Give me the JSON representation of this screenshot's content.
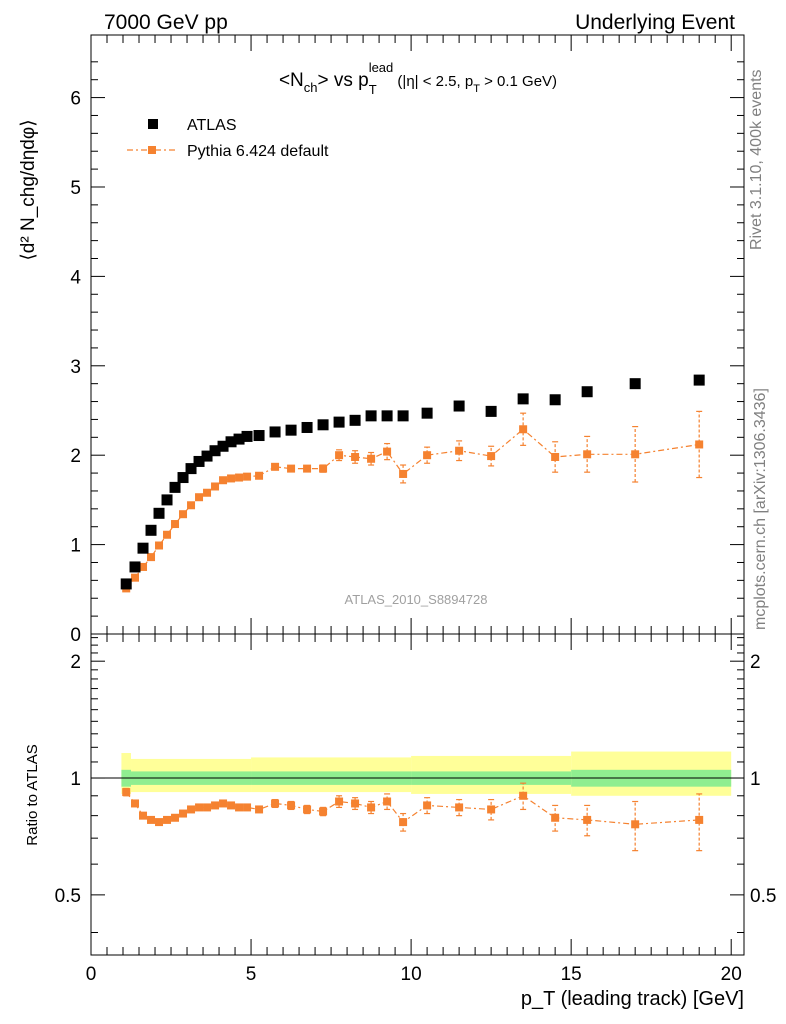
{
  "header": {
    "left": "7000 GeV pp",
    "right": "Underlying Event"
  },
  "side_labels": {
    "rivet": "Rivet 3.1.10,  400k events",
    "mcplots": "mcplots.cern.ch [arXiv:1306.3436]"
  },
  "colors": {
    "atlas": "#000000",
    "pythia": "#f58230",
    "band_inner": "#90ee90",
    "band_outer": "#ffff99"
  },
  "chart_data": [
    {
      "type": "scatter",
      "title_main": "<N",
      "title_sub1": "ch",
      "title_mid": "> vs p",
      "title_sup": "lead",
      "title_sub2": "T",
      "title_cut": " (|η| < 2.5, p",
      "title_cut_sub": "T",
      "title_cut_end": " > 0.1 GeV)",
      "ylabel": "⟨d² N_chg/dηdφ⟩",
      "ylim": [
        0,
        6.7
      ],
      "xlim": [
        0,
        20.4
      ],
      "yticks": [
        0,
        1,
        2,
        3,
        4,
        5,
        6
      ],
      "watermark": "ATLAS_2010_S8894728",
      "legend": [
        {
          "name": "ATLAS",
          "series": "atlas"
        },
        {
          "name": "Pythia 6.424 default",
          "series": "pythia"
        }
      ],
      "series": [
        {
          "name": "ATLAS",
          "key": "atlas",
          "points": [
            [
              1.1,
              0.56
            ],
            [
              1.375,
              0.75
            ],
            [
              1.625,
              0.96
            ],
            [
              1.875,
              1.16
            ],
            [
              2.125,
              1.35
            ],
            [
              2.375,
              1.5
            ],
            [
              2.625,
              1.64
            ],
            [
              2.875,
              1.75
            ],
            [
              3.125,
              1.85
            ],
            [
              3.375,
              1.93
            ],
            [
              3.625,
              1.99
            ],
            [
              3.875,
              2.05
            ],
            [
              4.125,
              2.1
            ],
            [
              4.375,
              2.15
            ],
            [
              4.625,
              2.18
            ],
            [
              4.875,
              2.21
            ],
            [
              5.25,
              2.22
            ],
            [
              5.75,
              2.26
            ],
            [
              6.25,
              2.28
            ],
            [
              6.75,
              2.31
            ],
            [
              7.25,
              2.34
            ],
            [
              7.75,
              2.37
            ],
            [
              8.25,
              2.39
            ],
            [
              8.75,
              2.44
            ],
            [
              9.25,
              2.44
            ],
            [
              9.75,
              2.44
            ],
            [
              10.5,
              2.47
            ],
            [
              11.5,
              2.55
            ],
            [
              12.5,
              2.49
            ],
            [
              13.5,
              2.63
            ],
            [
              14.5,
              2.62
            ],
            [
              15.5,
              2.71
            ],
            [
              17.0,
              2.8
            ],
            [
              19.0,
              2.84
            ]
          ]
        },
        {
          "name": "Pythia 6.424 default",
          "key": "pythia",
          "points": [
            [
              1.1,
              0.51,
              0.02
            ],
            [
              1.375,
              0.63,
              0.02
            ],
            [
              1.625,
              0.75,
              0.02
            ],
            [
              1.875,
              0.86,
              0.02
            ],
            [
              2.125,
              0.99,
              0.02
            ],
            [
              2.375,
              1.11,
              0.02
            ],
            [
              2.625,
              1.23,
              0.02
            ],
            [
              2.875,
              1.34,
              0.02
            ],
            [
              3.125,
              1.44,
              0.02
            ],
            [
              3.375,
              1.53,
              0.02
            ],
            [
              3.625,
              1.58,
              0.02
            ],
            [
              3.875,
              1.65,
              0.02
            ],
            [
              4.125,
              1.72,
              0.02
            ],
            [
              4.375,
              1.74,
              0.02
            ],
            [
              4.625,
              1.75,
              0.02
            ],
            [
              4.875,
              1.76,
              0.02
            ],
            [
              5.25,
              1.77,
              0.03
            ],
            [
              5.75,
              1.87,
              0.03
            ],
            [
              6.25,
              1.85,
              0.03
            ],
            [
              6.75,
              1.85,
              0.03
            ],
            [
              7.25,
              1.85,
              0.04
            ],
            [
              7.75,
              2.0,
              0.06
            ],
            [
              8.25,
              1.98,
              0.07
            ],
            [
              8.75,
              1.96,
              0.07
            ],
            [
              9.25,
              2.04,
              0.09
            ],
            [
              9.75,
              1.79,
              0.1
            ],
            [
              10.5,
              2.0,
              0.09
            ],
            [
              11.5,
              2.05,
              0.11
            ],
            [
              12.5,
              1.99,
              0.11
            ],
            [
              13.5,
              2.29,
              0.18
            ],
            [
              14.5,
              1.98,
              0.17
            ],
            [
              15.5,
              2.01,
              0.2
            ],
            [
              17.0,
              2.01,
              0.31
            ],
            [
              19.0,
              2.12,
              0.37
            ]
          ]
        }
      ]
    },
    {
      "type": "scatter",
      "ylabel": "Ratio to ATLAS",
      "xlabel": "p_T (leading track) [GeV]",
      "xlim": [
        0,
        20.4
      ],
      "ylim": [
        0.35,
        2.35
      ],
      "yscale": "log",
      "yticks": [
        0.5,
        1,
        2
      ],
      "xticks": [
        0,
        5,
        10,
        15,
        20
      ],
      "reference_line": 1,
      "band_bins": [
        {
          "x": [
            0.95,
            1.25
          ],
          "inner": [
            0.95,
            1.05
          ],
          "outer": [
            0.91,
            1.16
          ]
        },
        {
          "x": [
            1.25,
            5.0
          ],
          "inner": [
            0.96,
            1.04
          ],
          "outer": [
            0.92,
            1.12
          ]
        },
        {
          "x": [
            5.0,
            10.0
          ],
          "inner": [
            0.96,
            1.04
          ],
          "outer": [
            0.92,
            1.13
          ]
        },
        {
          "x": [
            10.0,
            15.0
          ],
          "inner": [
            0.96,
            1.04
          ],
          "outer": [
            0.91,
            1.14
          ]
        },
        {
          "x": [
            15.0,
            20.0
          ],
          "inner": [
            0.95,
            1.05
          ],
          "outer": [
            0.9,
            1.17
          ]
        }
      ],
      "series": [
        {
          "name": "Pythia 6.424 default",
          "key": "pythia",
          "points": [
            [
              1.1,
              0.92,
              0.02
            ],
            [
              1.375,
              0.86,
              0.01
            ],
            [
              1.625,
              0.8,
              0.01
            ],
            [
              1.875,
              0.78,
              0.01
            ],
            [
              2.125,
              0.77,
              0.01
            ],
            [
              2.375,
              0.78,
              0.01
            ],
            [
              2.625,
              0.79,
              0.01
            ],
            [
              2.875,
              0.81,
              0.01
            ],
            [
              3.125,
              0.83,
              0.01
            ],
            [
              3.375,
              0.84,
              0.01
            ],
            [
              3.625,
              0.84,
              0.01
            ],
            [
              3.875,
              0.85,
              0.01
            ],
            [
              4.125,
              0.86,
              0.01
            ],
            [
              4.375,
              0.85,
              0.01
            ],
            [
              4.625,
              0.84,
              0.01
            ],
            [
              4.875,
              0.84,
              0.01
            ],
            [
              5.25,
              0.83,
              0.01
            ],
            [
              5.75,
              0.86,
              0.02
            ],
            [
              6.25,
              0.85,
              0.02
            ],
            [
              6.75,
              0.83,
              0.02
            ],
            [
              7.25,
              0.82,
              0.02
            ],
            [
              7.75,
              0.87,
              0.03
            ],
            [
              8.25,
              0.86,
              0.03
            ],
            [
              8.75,
              0.84,
              0.03
            ],
            [
              9.25,
              0.87,
              0.04
            ],
            [
              9.75,
              0.77,
              0.04
            ],
            [
              10.5,
              0.85,
              0.04
            ],
            [
              11.5,
              0.84,
              0.04
            ],
            [
              12.5,
              0.83,
              0.05
            ],
            [
              13.5,
              0.9,
              0.07
            ],
            [
              14.5,
              0.79,
              0.06
            ],
            [
              15.5,
              0.78,
              0.07
            ],
            [
              17.0,
              0.76,
              0.11
            ],
            [
              19.0,
              0.78,
              0.13
            ]
          ]
        }
      ]
    }
  ]
}
